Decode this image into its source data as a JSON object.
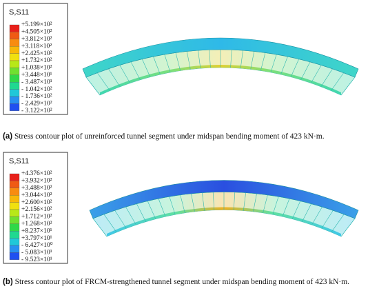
{
  "panels": [
    {
      "legend": {
        "title": "S,S11",
        "values": [
          "+5.199×10²",
          "+4.505×10²",
          "+3.812×10²",
          "+3.118×10²",
          "+2.425×10²",
          "+1.732×10²",
          "+1.038×10²",
          "+3.448×10¹",
          "- 3.487×10¹",
          "- 1.042×10²",
          "- 1.736×10²",
          "- 2.429×10²",
          "- 3.122×10²"
        ]
      },
      "caption": {
        "label": "(a)",
        "text": "Stress contour plot of unreinforced tunnel segment under midspan bending moment of 423 kN·m."
      }
    },
    {
      "legend": {
        "title": "S,S11",
        "values": [
          "+4.376×10²",
          "+3.932×10²",
          "+3.488×10²",
          "+3.044×10²",
          "+2.600×10²",
          "+2.156×10²",
          "+1.712×10²",
          "+1.268×10²",
          "+8.237×10¹",
          "+3.797×10¹",
          "- 6.427×10⁰",
          "- 5.083×10¹",
          "- 9.523×10¹"
        ]
      },
      "caption": {
        "label": "(b)",
        "text": "Stress contour plot of FRCM-strengthened tunnel segment under midspan bending moment of 423 kN·m."
      }
    }
  ]
}
